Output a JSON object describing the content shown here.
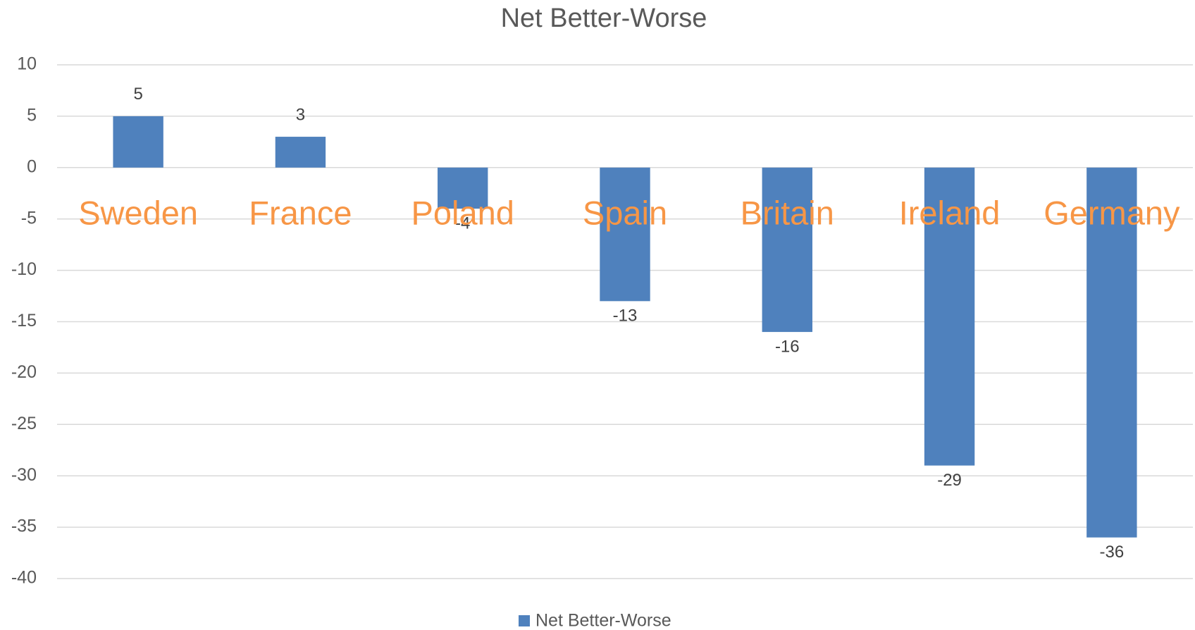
{
  "chart_data": {
    "type": "bar",
    "title": "Net Better-Worse",
    "categories": [
      "Sweden",
      "France",
      "Poland",
      "Spain",
      "Britain",
      "Ireland",
      "Germany"
    ],
    "series": [
      {
        "name": "Net Better-Worse",
        "color": "#4f81bd",
        "values": [
          5,
          3,
          -4,
          -13,
          -16,
          -29,
          -36
        ]
      }
    ],
    "ylim": [
      -40,
      10
    ],
    "yticks": [
      -40,
      -35,
      -30,
      -25,
      -20,
      -15,
      -10,
      -5,
      0,
      5,
      10
    ],
    "grid": true,
    "category_label_color": "#f79646",
    "legend": "bottom"
  }
}
